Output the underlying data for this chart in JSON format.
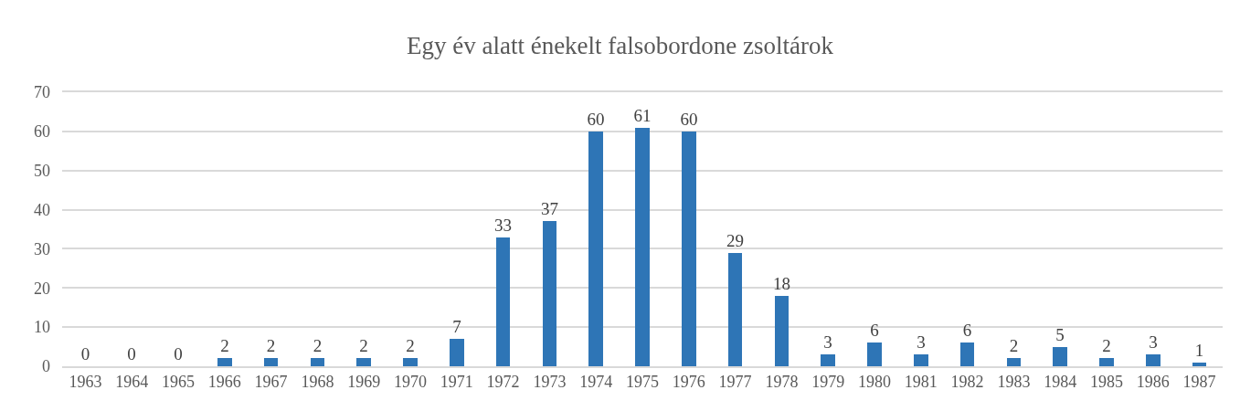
{
  "chart_data": {
    "type": "bar",
    "title": "Egy év alatt énekelt falsobordone zsoltárok",
    "categories": [
      "1963",
      "1964",
      "1965",
      "1966",
      "1967",
      "1968",
      "1969",
      "1970",
      "1971",
      "1972",
      "1973",
      "1974",
      "1975",
      "1976",
      "1977",
      "1978",
      "1979",
      "1980",
      "1981",
      "1982",
      "1983",
      "1984",
      "1985",
      "1986",
      "1987"
    ],
    "values": [
      0,
      0,
      0,
      2,
      2,
      2,
      2,
      2,
      7,
      33,
      37,
      60,
      61,
      60,
      29,
      18,
      3,
      6,
      3,
      6,
      2,
      5,
      2,
      3,
      1
    ],
    "color": "#2e75b6",
    "ylim": [
      0,
      70
    ],
    "yticks": [
      0,
      10,
      20,
      30,
      40,
      50,
      60,
      70
    ],
    "grid": "y",
    "data_labels": true
  }
}
